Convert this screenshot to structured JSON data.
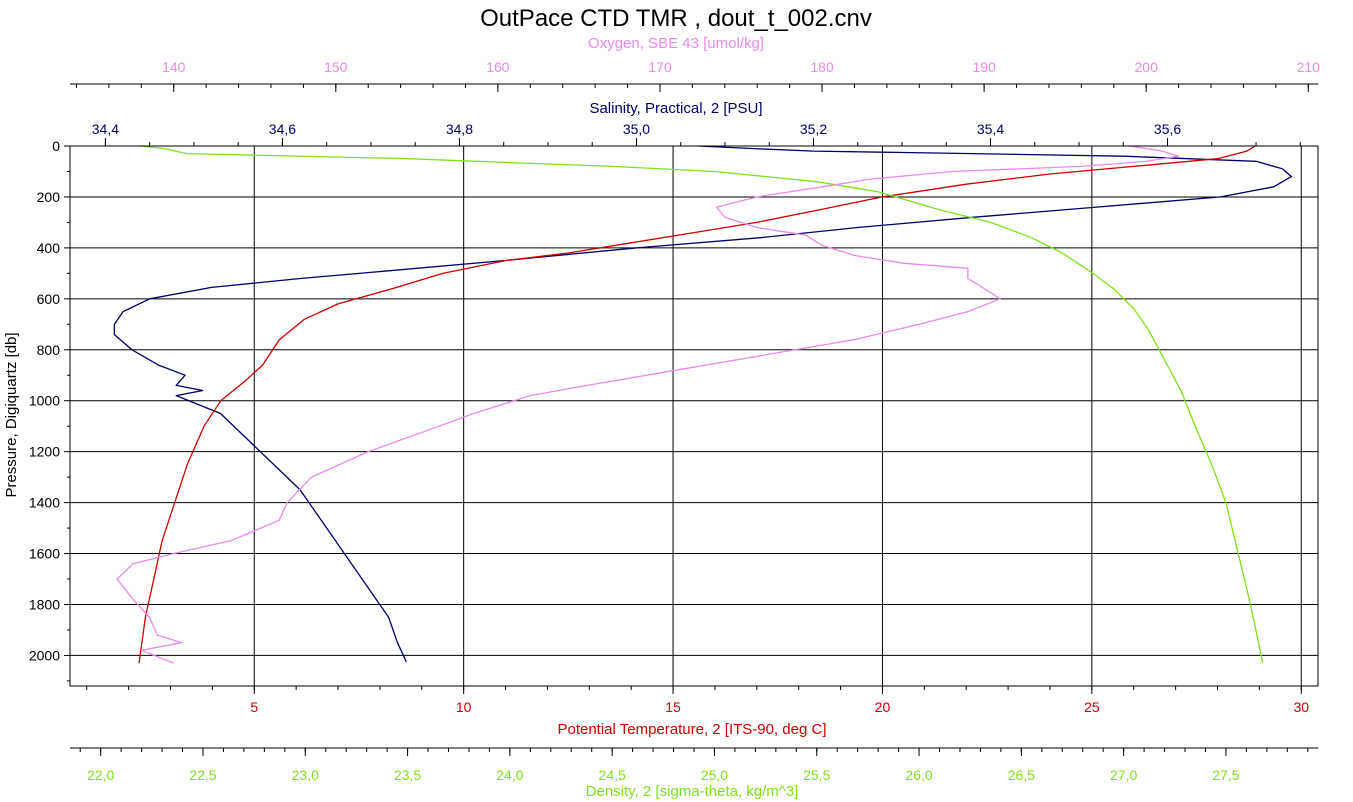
{
  "chart_data": {
    "type": "line",
    "title": "OutPace CTD TMR , dout_t_002.cnv",
    "colors": {
      "oxygen": "#e98be9",
      "salinity": "#000066",
      "temperature": "#cc0000",
      "density": "#7fe01f",
      "grid": "#000000"
    },
    "y_axis": {
      "label": "Pressure, Digiquartz [db]",
      "range": [
        0,
        2120
      ],
      "inverted": true,
      "ticks": [
        "0",
        "200",
        "400",
        "600",
        "800",
        "1000",
        "1200",
        "1400",
        "1600",
        "1800",
        "2000"
      ]
    },
    "axes": {
      "oxygen": {
        "label": "Oxygen, SBE 43 [umol/kg]",
        "position": "top",
        "range": [
          133.6,
          210.6
        ],
        "ticks": [
          "140",
          "150",
          "160",
          "170",
          "180",
          "190",
          "200",
          "210"
        ]
      },
      "salinity": {
        "label": "Salinity, Practical, 2 [PSU]",
        "position": "top",
        "range": [
          34.36,
          35.77
        ],
        "ticks": [
          "34,4",
          "34,6",
          "34,8",
          "35,0",
          "35,2",
          "35,4",
          "35,6"
        ]
      },
      "temperature": {
        "label": "Potential Temperature, 2 [ITS-90, deg C]",
        "position": "bottom",
        "range": [
          0.6,
          30.4
        ],
        "ticks": [
          "5",
          "10",
          "15",
          "20",
          "25",
          "30"
        ]
      },
      "density": {
        "label": "Density, 2 [sigma-theta, kg/m^3]",
        "position": "bottom",
        "range": [
          21.85,
          27.95
        ],
        "ticks": [
          "22,0",
          "22,5",
          "23,0",
          "23,5",
          "24,0",
          "24,5",
          "25,0",
          "25,5",
          "26,0",
          "26,5",
          "27,0",
          "27,5"
        ]
      }
    },
    "grid": true,
    "series": [
      {
        "name": "Salinity, Practical, 2 [PSU]",
        "axis": "salinity",
        "points": [
          [
            35.07,
            0
          ],
          [
            35.13,
            10
          ],
          [
            35.2,
            20
          ],
          [
            35.38,
            30
          ],
          [
            35.55,
            40
          ],
          [
            35.7,
            60
          ],
          [
            35.73,
            90
          ],
          [
            35.74,
            120
          ],
          [
            35.72,
            160
          ],
          [
            35.66,
            200
          ],
          [
            35.52,
            240
          ],
          [
            35.38,
            280
          ],
          [
            35.25,
            320
          ],
          [
            35.14,
            360
          ],
          [
            35.0,
            400
          ],
          [
            34.85,
            450
          ],
          [
            34.72,
            490
          ],
          [
            34.62,
            520
          ],
          [
            34.52,
            555
          ],
          [
            34.45,
            600
          ],
          [
            34.42,
            650
          ],
          [
            34.41,
            700
          ],
          [
            34.41,
            740
          ],
          [
            34.43,
            800
          ],
          [
            34.46,
            860
          ],
          [
            34.49,
            900
          ],
          [
            34.48,
            940
          ],
          [
            34.51,
            960
          ],
          [
            34.48,
            980
          ],
          [
            34.53,
            1050
          ],
          [
            34.56,
            1150
          ],
          [
            34.59,
            1250
          ],
          [
            34.62,
            1350
          ],
          [
            34.64,
            1450
          ],
          [
            34.66,
            1550
          ],
          [
            34.68,
            1650
          ],
          [
            34.7,
            1750
          ],
          [
            34.72,
            1850
          ],
          [
            34.73,
            1950
          ],
          [
            34.74,
            2025
          ]
        ]
      },
      {
        "name": "Potential Temperature, 2 [ITS-90, deg C]",
        "axis": "temperature",
        "points": [
          [
            28.9,
            0
          ],
          [
            28.7,
            20
          ],
          [
            28.0,
            50
          ],
          [
            26.0,
            80
          ],
          [
            24.0,
            110
          ],
          [
            22.0,
            150
          ],
          [
            20.0,
            200
          ],
          [
            18.5,
            250
          ],
          [
            17.0,
            300
          ],
          [
            15.5,
            340
          ],
          [
            14.0,
            380
          ],
          [
            12.5,
            420
          ],
          [
            11.0,
            450
          ],
          [
            9.5,
            500
          ],
          [
            8.3,
            560
          ],
          [
            7.0,
            620
          ],
          [
            6.2,
            680
          ],
          [
            5.6,
            760
          ],
          [
            5.2,
            860
          ],
          [
            4.8,
            920
          ],
          [
            4.2,
            1000
          ],
          [
            3.8,
            1100
          ],
          [
            3.4,
            1250
          ],
          [
            3.1,
            1400
          ],
          [
            2.8,
            1550
          ],
          [
            2.6,
            1700
          ],
          [
            2.4,
            1850
          ],
          [
            2.25,
            2030
          ]
        ]
      },
      {
        "name": "Density, 2 [sigma-theta, kg/m^3]",
        "axis": "density",
        "points": [
          [
            22.19,
            0
          ],
          [
            22.31,
            10
          ],
          [
            22.42,
            30
          ],
          [
            23.5,
            50
          ],
          [
            24.5,
            80
          ],
          [
            25.0,
            100
          ],
          [
            25.5,
            140
          ],
          [
            25.8,
            180
          ],
          [
            26.1,
            250
          ],
          [
            26.35,
            300
          ],
          [
            26.55,
            360
          ],
          [
            26.7,
            420
          ],
          [
            26.85,
            500
          ],
          [
            26.95,
            560
          ],
          [
            27.05,
            640
          ],
          [
            27.12,
            720
          ],
          [
            27.2,
            840
          ],
          [
            27.28,
            960
          ],
          [
            27.35,
            1100
          ],
          [
            27.43,
            1250
          ],
          [
            27.5,
            1400
          ],
          [
            27.56,
            1600
          ],
          [
            27.62,
            1800
          ],
          [
            27.68,
            2030
          ]
        ]
      },
      {
        "name": "Oxygen, SBE 43 [umol/kg]",
        "axis": "oxygen",
        "points": [
          [
            199.0,
            0
          ],
          [
            201.0,
            20
          ],
          [
            202.0,
            40
          ],
          [
            200.0,
            60
          ],
          [
            196.0,
            80
          ],
          [
            188.0,
            100
          ],
          [
            183.0,
            130
          ],
          [
            180.0,
            160
          ],
          [
            176.0,
            200
          ],
          [
            173.5,
            240
          ],
          [
            174.0,
            280
          ],
          [
            176.0,
            320
          ],
          [
            179.0,
            350
          ],
          [
            180.0,
            390
          ],
          [
            182.0,
            430
          ],
          [
            185.0,
            460
          ],
          [
            189.0,
            480
          ],
          [
            189.0,
            520
          ],
          [
            190.0,
            560
          ],
          [
            191.0,
            600
          ],
          [
            189.0,
            650
          ],
          [
            186.0,
            700
          ],
          [
            182.0,
            760
          ],
          [
            176.5,
            820
          ],
          [
            171.0,
            880
          ],
          [
            165.5,
            940
          ],
          [
            162.0,
            980
          ],
          [
            158.5,
            1050
          ],
          [
            155.5,
            1120
          ],
          [
            152.0,
            1200
          ],
          [
            148.5,
            1300
          ],
          [
            147.0,
            1400
          ],
          [
            146.5,
            1470
          ],
          [
            143.5,
            1550
          ],
          [
            140.0,
            1600
          ],
          [
            137.5,
            1640
          ],
          [
            136.5,
            1700
          ],
          [
            137.5,
            1780
          ],
          [
            138.5,
            1850
          ],
          [
            139.0,
            1920
          ],
          [
            140.5,
            1950
          ],
          [
            138.0,
            1980
          ],
          [
            140.0,
            2030
          ]
        ]
      }
    ]
  }
}
